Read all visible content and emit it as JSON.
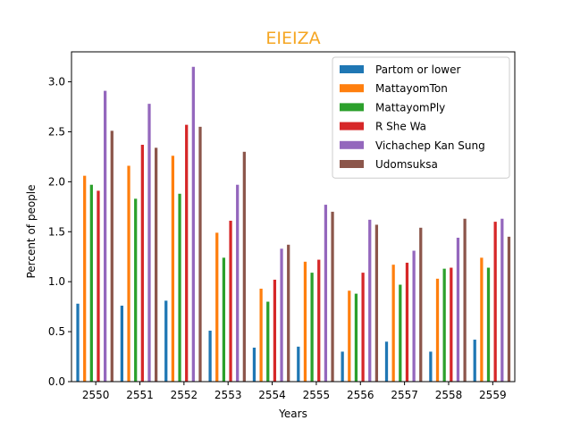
{
  "chart_data": {
    "type": "bar",
    "title": "EIEIZA",
    "title_color": "#f5a623",
    "xlabel": "Years",
    "ylabel": "Percent of people",
    "ylim": [
      0,
      3.3
    ],
    "yticks": [
      0.0,
      0.5,
      1.0,
      1.5,
      2.0,
      2.5,
      3.0
    ],
    "ytick_labels": [
      "0.0",
      "0.5",
      "1.0",
      "1.5",
      "2.0",
      "2.5",
      "3.0"
    ],
    "categories": [
      "2550",
      "2551",
      "2552",
      "2553",
      "2554",
      "2555",
      "2556",
      "2557",
      "2558",
      "2559"
    ],
    "legend_position": "top-right",
    "grid": false,
    "series": [
      {
        "name": "Partom or lower",
        "color": "#1f77b4",
        "values": [
          0.78,
          0.76,
          0.81,
          0.51,
          0.34,
          0.35,
          0.3,
          0.4,
          0.3,
          0.42
        ]
      },
      {
        "name": "MattayomTon",
        "color": "#ff7f0e",
        "values": [
          2.06,
          2.16,
          2.26,
          1.49,
          0.93,
          1.2,
          0.91,
          1.17,
          1.03,
          1.24
        ]
      },
      {
        "name": "MattayomPly",
        "color": "#2ca02c",
        "values": [
          1.97,
          1.83,
          1.88,
          1.24,
          0.8,
          1.09,
          0.88,
          0.97,
          1.13,
          1.14
        ]
      },
      {
        "name": "R She Wa",
        "color": "#d62728",
        "values": [
          1.91,
          2.37,
          2.57,
          1.61,
          1.02,
          1.22,
          1.09,
          1.19,
          1.14,
          1.6
        ]
      },
      {
        "name": "Vichachep Kan Sung",
        "color": "#9467bd",
        "values": [
          2.91,
          2.78,
          3.15,
          1.97,
          1.33,
          1.77,
          1.62,
          1.31,
          1.44,
          1.63
        ]
      },
      {
        "name": "Udomsuksa",
        "color": "#8c564b",
        "values": [
          2.51,
          2.34,
          2.55,
          2.3,
          1.37,
          1.7,
          1.57,
          1.54,
          1.63,
          1.45
        ]
      }
    ]
  }
}
